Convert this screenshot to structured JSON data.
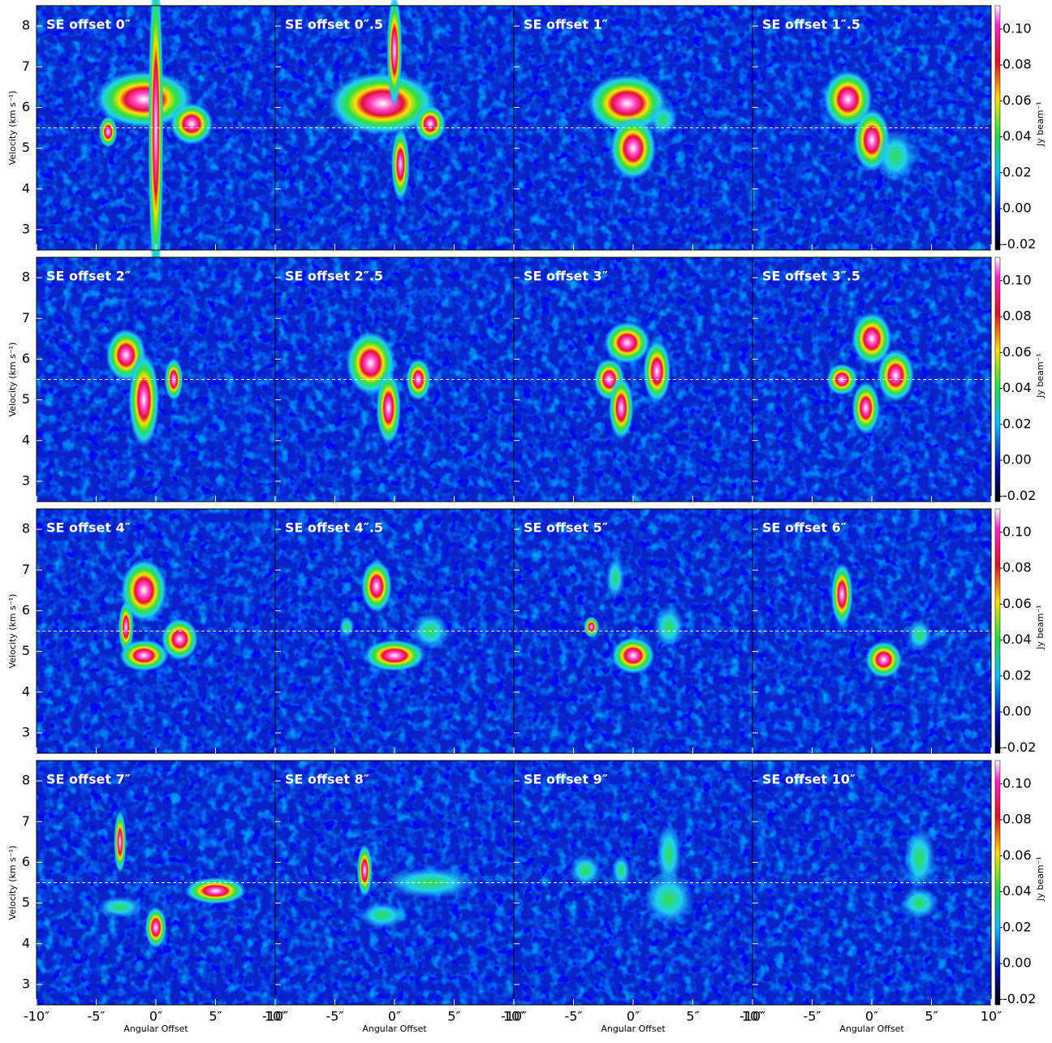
{
  "chart_data": {
    "type": "heatmap",
    "x_label": "Angular Offset",
    "y_label": "Velocity (km s⁻¹)",
    "colorbar_label": "Jy beam⁻¹",
    "xlim": [
      -10,
      10
    ],
    "xticks": [
      {
        "value": -10,
        "label": "-10″"
      },
      {
        "value": -5,
        "label": "-5″"
      },
      {
        "value": 0,
        "label": "0″"
      },
      {
        "value": 5,
        "label": "5″"
      },
      {
        "value": 10,
        "label": "10″"
      }
    ],
    "ylim": [
      2.5,
      8.5
    ],
    "yticks": [
      3,
      4,
      5,
      6,
      7,
      8
    ],
    "colorbar_lim": [
      -0.023,
      0.113
    ],
    "colorbar_ticks": [
      -0.02,
      {
        "value": 0,
        "label": "0.00"
      },
      0.02,
      0.04,
      0.06,
      0.08,
      {
        "value": 0.1,
        "label": "0.10"
      }
    ],
    "reference_line": 5.5,
    "panels": [
      "SE offset 0″",
      "SE offset 0″.5",
      "SE offset 1″",
      "SE offset 1″.5",
      "SE offset 2″",
      "SE offset 2″.5",
      "SE offset 3″",
      "SE offset 3″.5",
      "SE offset 4″",
      "SE offset 4″.5",
      "SE offset 5″",
      "SE offset 6″",
      "SE offset 7″",
      "SE offset 8″",
      "SE offset 9″",
      "SE offset 10″"
    ]
  }
}
